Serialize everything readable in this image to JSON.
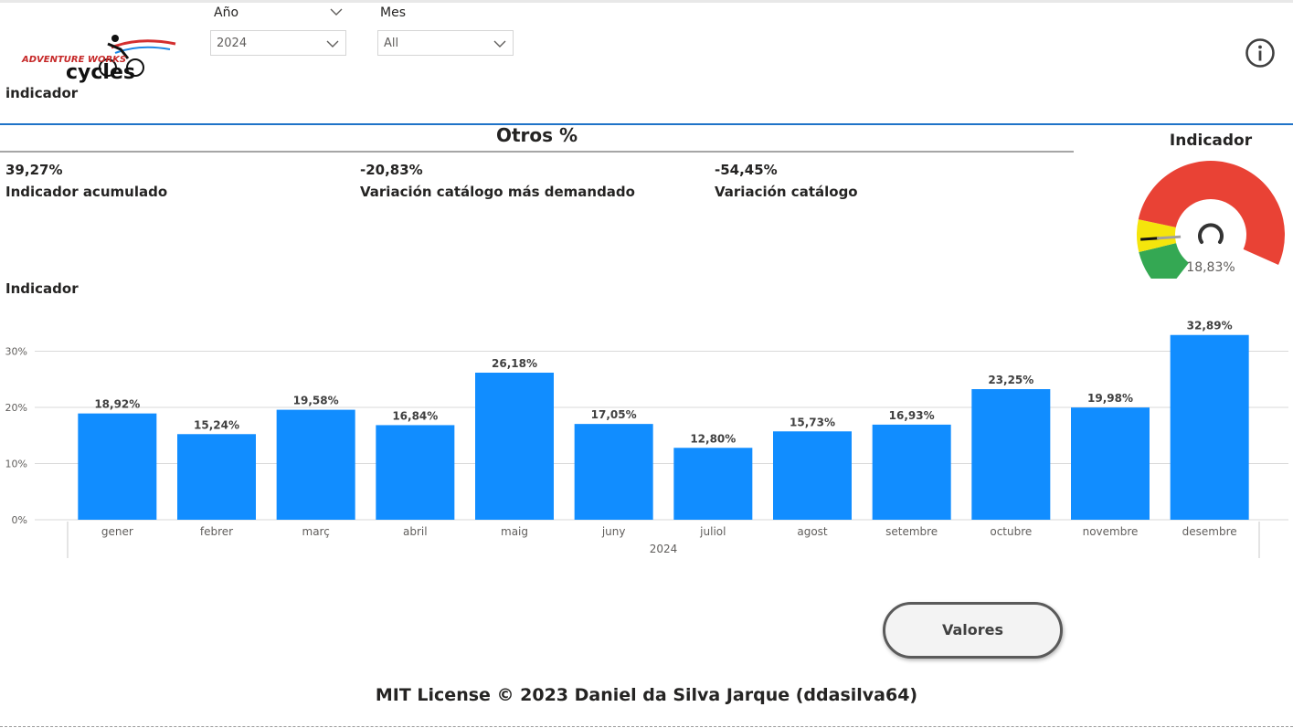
{
  "logo": {
    "brand_top": "ADVENTURE WORKS",
    "brand_main": "cycles"
  },
  "filters": {
    "year": {
      "label": "Año",
      "value": "2024"
    },
    "month": {
      "label": "Mes",
      "value": "All"
    }
  },
  "header": {
    "section_label": "indicador",
    "info_icon": "info-circle-icon"
  },
  "otros": {
    "title": "Otros %",
    "kpis": [
      {
        "value": "39,27%",
        "label": "Indicador acumulado"
      },
      {
        "value": "-20,83%",
        "label": "Variación catálogo más demandado"
      },
      {
        "value": "-54,45%",
        "label": "Variación catálogo"
      }
    ]
  },
  "gauge": {
    "title": "Indicador",
    "value_label": "18,83%",
    "value": 18.83,
    "bands": [
      {
        "color": "#34a853",
        "from": 0,
        "to": 15
      },
      {
        "color": "#f5e50c",
        "from": 15,
        "to": 25
      },
      {
        "color": "#e94235",
        "from": 25,
        "to": 100
      }
    ]
  },
  "chart_title": "Indicador",
  "chart_data": {
    "type": "bar",
    "categories": [
      "gener",
      "febrer",
      "març",
      "abril",
      "maig",
      "juny",
      "juliol",
      "agost",
      "setembre",
      "octubre",
      "novembre",
      "desembre"
    ],
    "values": [
      18.92,
      15.24,
      19.58,
      16.84,
      26.18,
      17.05,
      12.8,
      15.73,
      16.93,
      23.25,
      19.98,
      32.89
    ],
    "data_labels": [
      "18,92%",
      "15,24%",
      "19,58%",
      "16,84%",
      "26,18%",
      "17,05%",
      "12,80%",
      "15,73%",
      "16,93%",
      "23,25%",
      "19,98%",
      "32,89%"
    ],
    "yticks": [
      "0%",
      "10%",
      "20%",
      "30%"
    ],
    "ytick_values": [
      0,
      10,
      20,
      30
    ],
    "ylim": [
      0,
      35
    ],
    "group_label": "2024",
    "bar_color": "#118dff",
    "grid": true
  },
  "buttons": {
    "valores": "Valores"
  },
  "footer": {
    "license": "MIT License © 2023 Daniel da Silva Jarque (ddasilva64)"
  }
}
